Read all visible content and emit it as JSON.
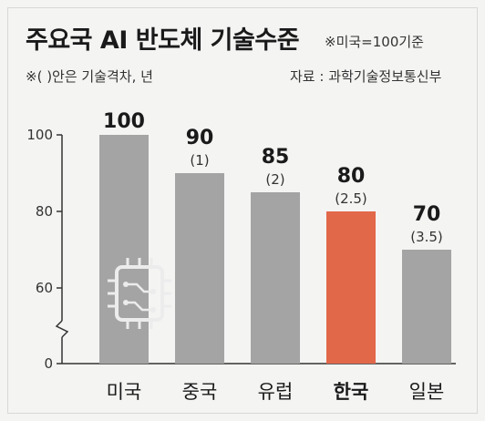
{
  "header": {
    "title": "주요국 AI 반도체 기술수준",
    "baseline_note": "※미국=100기준",
    "gap_note": "※( )안은 기술격차, 년",
    "source": "자료 : 과학기술정보통신부"
  },
  "colors": {
    "bar": "#a4a4a4",
    "highlight": "#e2684a",
    "background": "#f4f4f3",
    "axis": "#333333"
  },
  "chart_data": {
    "type": "bar",
    "categories": [
      "미국",
      "중국",
      "유럽",
      "한국",
      "일본"
    ],
    "values": [
      100,
      90,
      85,
      80,
      70
    ],
    "value_labels": [
      "100",
      "90",
      "85",
      "80",
      "70"
    ],
    "gap_labels": [
      "",
      "(1)",
      "(2)",
      "(2.5)",
      "(3.5)"
    ],
    "highlight_index": 3,
    "y_ticks": [
      "100",
      "80",
      "60",
      "0"
    ],
    "y_tick_values": [
      100,
      80,
      60,
      0
    ],
    "axis_break": true,
    "ylim": [
      0,
      100
    ],
    "xlabel": "",
    "ylabel": "",
    "grid": false,
    "legend": "none",
    "decoration": "chip-icon"
  }
}
